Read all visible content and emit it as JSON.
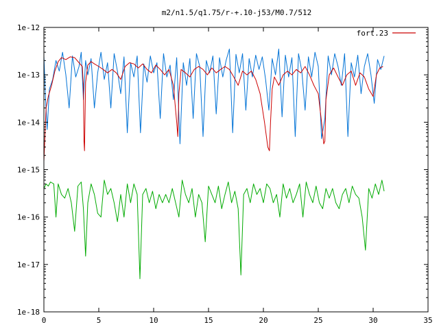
{
  "chart_data": {
    "type": "line",
    "title": "m2/n1.5/q1.75/r-+.10-j53/M0.7/512",
    "xlabel": "",
    "ylabel": "",
    "xlim": [
      0,
      35
    ],
    "ylim": [
      1e-18,
      1e-12
    ],
    "yscale": "log",
    "grid": false,
    "legend_position": "top-right",
    "x_ticks": [
      0,
      5,
      10,
      15,
      20,
      25,
      30,
      35
    ],
    "x_tick_labels": [
      "0",
      "5",
      "10",
      "15",
      "20",
      "25",
      "30",
      "35"
    ],
    "y_ticks": [
      1e-18,
      1e-17,
      1e-16,
      1e-15,
      1e-14,
      1e-13,
      1e-12
    ],
    "y_tick_labels": [
      "1e-18",
      "1e-17",
      "1e-16",
      "1e-15",
      "1e-14",
      "1e-13",
      "1e-12"
    ],
    "series": [
      {
        "name": "fort.23",
        "color": "#cc0000",
        "x": [
          0.0,
          0.2,
          0.4,
          0.7,
          1.0,
          1.3,
          1.6,
          2.0,
          2.4,
          2.8,
          3.2,
          3.5,
          3.6,
          3.65,
          3.7,
          3.8,
          4.0,
          4.3,
          4.6,
          5.0,
          5.4,
          5.8,
          6.2,
          6.6,
          7.0,
          7.4,
          7.8,
          8.2,
          8.6,
          9.0,
          9.4,
          9.8,
          10.2,
          10.6,
          11.0,
          11.4,
          11.8,
          12.1,
          12.2,
          12.3,
          12.5,
          12.9,
          13.3,
          13.7,
          14.1,
          14.5,
          14.9,
          15.3,
          15.7,
          16.1,
          16.5,
          16.9,
          17.3,
          17.7,
          18.1,
          18.5,
          18.9,
          19.3,
          19.7,
          20.1,
          20.4,
          20.55,
          20.65,
          20.8,
          21.0,
          21.4,
          21.8,
          22.2,
          22.6,
          23.0,
          23.4,
          23.8,
          24.2,
          24.6,
          25.0,
          25.3,
          25.5,
          25.6,
          25.7,
          26.0,
          26.4,
          26.8,
          27.2,
          27.6,
          28.0,
          28.4,
          28.8,
          29.2,
          29.6,
          30.0,
          30.3,
          30.6,
          30.9
        ],
        "values": [
          1.5e-15,
          2e-14,
          3.5e-14,
          6e-14,
          1.2e-13,
          1.9e-13,
          2.3e-13,
          2.1e-13,
          2.4e-13,
          2.3e-13,
          1.8e-13,
          1.5e-13,
          6e-14,
          4e-15,
          2.5e-15,
          7e-14,
          1.6e-13,
          1.9e-13,
          1.7e-13,
          1.5e-13,
          1.3e-13,
          1.1e-13,
          1.3e-13,
          1.1e-13,
          8e-14,
          1.5e-13,
          1.8e-13,
          1.7e-13,
          1.4e-13,
          1.7e-13,
          1.3e-13,
          1.1e-13,
          1.6e-13,
          1.3e-13,
          1e-13,
          1.3e-13,
          6e-14,
          1e-14,
          5e-15,
          4e-14,
          1.3e-13,
          1.1e-13,
          9e-14,
          1.3e-13,
          1.5e-13,
          1.3e-13,
          1e-13,
          1.4e-13,
          1.1e-13,
          1.3e-13,
          1.5e-13,
          1.3e-13,
          9e-14,
          6e-14,
          1.2e-13,
          1e-13,
          1.2e-13,
          8e-14,
          4e-14,
          1e-14,
          3e-15,
          2.5e-15,
          1e-14,
          5e-14,
          9e-14,
          6e-14,
          1e-13,
          1.2e-13,
          1e-13,
          1.3e-13,
          1.1e-13,
          1.5e-13,
          1e-13,
          6e-14,
          4e-14,
          1e-14,
          3.5e-15,
          4e-15,
          3e-14,
          1e-13,
          1.4e-13,
          9e-14,
          6e-14,
          1e-13,
          1.2e-13,
          6e-14,
          1.1e-13,
          9e-14,
          5e-14,
          3.5e-14,
          1e-13,
          1.4e-13,
          1.5e-13
        ]
      },
      {
        "name": "",
        "color": "#0072d6",
        "x": [
          0.0,
          0.15,
          0.3,
          0.5,
          0.8,
          1.1,
          1.4,
          1.7,
          2.0,
          2.3,
          2.6,
          2.9,
          3.2,
          3.4,
          3.6,
          3.8,
          4.0,
          4.3,
          4.6,
          4.9,
          5.2,
          5.5,
          5.8,
          6.1,
          6.4,
          6.7,
          7.0,
          7.3,
          7.6,
          7.9,
          8.2,
          8.5,
          8.8,
          9.1,
          9.4,
          9.7,
          10.0,
          10.3,
          10.6,
          10.9,
          11.2,
          11.5,
          11.8,
          12.1,
          12.4,
          12.7,
          13.0,
          13.3,
          13.6,
          13.9,
          14.2,
          14.5,
          14.8,
          15.1,
          15.4,
          15.7,
          16.0,
          16.3,
          16.6,
          16.9,
          17.2,
          17.5,
          17.8,
          18.1,
          18.4,
          18.7,
          19.0,
          19.3,
          19.6,
          19.9,
          20.2,
          20.5,
          20.8,
          21.1,
          21.4,
          21.7,
          22.0,
          22.3,
          22.6,
          22.9,
          23.2,
          23.5,
          23.8,
          24.1,
          24.4,
          24.7,
          25.0,
          25.3,
          25.6,
          25.9,
          26.2,
          26.5,
          26.8,
          27.1,
          27.4,
          27.7,
          28.0,
          28.3,
          28.6,
          28.9,
          29.2,
          29.5,
          29.8,
          30.1,
          30.4,
          30.7,
          31.0
        ],
        "values": [
          2.5e-13,
          3e-14,
          7e-15,
          5e-14,
          8e-14,
          2e-13,
          1.2e-13,
          3e-13,
          1e-13,
          2e-14,
          2.5e-13,
          9e-14,
          1.5e-13,
          3e-13,
          3e-14,
          2e-13,
          1e-13,
          2.2e-13,
          2e-14,
          1.1e-13,
          3e-13,
          8e-14,
          1.8e-13,
          2e-14,
          2.8e-13,
          1.2e-13,
          4e-14,
          2.4e-13,
          6e-15,
          1.8e-13,
          9e-14,
          2.5e-13,
          6e-15,
          1.7e-13,
          7e-14,
          2.5e-13,
          1.1e-13,
          1.8e-13,
          1.2e-14,
          2.8e-13,
          9e-14,
          1.6e-13,
          3e-14,
          2.3e-13,
          3.5e-15,
          1.8e-13,
          6e-14,
          2.2e-13,
          1.2e-14,
          2.8e-13,
          1.5e-13,
          5e-15,
          2e-13,
          1.1e-13,
          2.5e-13,
          1.5e-14,
          2.3e-13,
          9e-14,
          2e-13,
          3.5e-13,
          6e-15,
          2.7e-13,
          1.1e-13,
          2.8e-13,
          1.8e-14,
          2.2e-13,
          9e-14,
          2.6e-13,
          1.3e-13,
          2.4e-13,
          8e-14,
          1.8e-14,
          2.2e-13,
          1e-13,
          3.5e-13,
          1.3e-14,
          2.6e-13,
          9e-14,
          2.3e-13,
          5e-15,
          2.8e-13,
          1.2e-13,
          1.8e-14,
          2.4e-13,
          9e-14,
          3e-13,
          1.5e-13,
          4.5e-15,
          1.2e-14,
          2.5e-13,
          1e-13,
          2.8e-13,
          1.5e-13,
          6e-14,
          2.8e-13,
          5e-15,
          1.8e-13,
          9e-14,
          2.6e-13,
          4e-14,
          1.5e-13,
          2.8e-13,
          1e-13,
          2.5e-14,
          2.1e-13,
          1.3e-13,
          2.5e-13
        ]
      },
      {
        "name": "",
        "color": "#00aa00",
        "x": [
          0.0,
          0.2,
          0.4,
          0.6,
          0.9,
          1.1,
          1.3,
          1.6,
          1.9,
          2.2,
          2.5,
          2.8,
          3.1,
          3.4,
          3.6,
          3.8,
          4.0,
          4.3,
          4.6,
          4.9,
          5.2,
          5.5,
          5.8,
          6.1,
          6.4,
          6.7,
          7.0,
          7.3,
          7.6,
          7.9,
          8.2,
          8.5,
          8.75,
          9.0,
          9.3,
          9.6,
          9.9,
          10.2,
          10.5,
          10.8,
          11.1,
          11.4,
          11.7,
          12.0,
          12.3,
          12.6,
          12.9,
          13.2,
          13.5,
          13.8,
          14.1,
          14.4,
          14.7,
          15.0,
          15.3,
          15.6,
          15.9,
          16.2,
          16.5,
          16.8,
          17.1,
          17.4,
          17.7,
          17.95,
          18.2,
          18.5,
          18.8,
          19.1,
          19.4,
          19.7,
          20.0,
          20.3,
          20.6,
          20.9,
          21.2,
          21.5,
          21.8,
          22.1,
          22.4,
          22.7,
          23.0,
          23.3,
          23.6,
          23.9,
          24.2,
          24.5,
          24.8,
          25.1,
          25.4,
          25.7,
          26.0,
          26.3,
          26.6,
          26.9,
          27.2,
          27.5,
          27.8,
          28.1,
          28.4,
          28.7,
          29.0,
          29.3,
          29.6,
          29.9,
          30.2,
          30.5,
          30.8,
          31.0
        ],
        "values": [
          4e-16,
          5e-16,
          4.5e-16,
          5.5e-16,
          5e-16,
          1e-16,
          5e-16,
          3e-16,
          2.5e-16,
          4e-16,
          2e-16,
          5e-17,
          4.5e-16,
          5.5e-16,
          1.5e-16,
          1.5e-17,
          2e-16,
          5e-16,
          3e-16,
          1.2e-16,
          1e-16,
          6e-16,
          3e-16,
          4e-16,
          2e-16,
          8e-17,
          3e-16,
          1e-16,
          5e-16,
          2e-16,
          5e-16,
          3e-16,
          5e-18,
          3e-16,
          4e-16,
          2e-16,
          3.5e-16,
          1.5e-16,
          3e-16,
          2e-16,
          3e-16,
          2e-16,
          4e-16,
          2e-16,
          1e-16,
          6e-16,
          3e-16,
          2e-16,
          4e-16,
          1e-16,
          3e-16,
          2e-16,
          3e-17,
          4.5e-16,
          3e-16,
          2e-16,
          4.5e-16,
          1.5e-16,
          3e-16,
          5.5e-16,
          2e-16,
          3.5e-16,
          1.5e-16,
          6e-18,
          3e-16,
          4e-16,
          2e-16,
          5e-16,
          3e-16,
          4e-16,
          2e-16,
          5e-16,
          4e-16,
          2e-16,
          3e-16,
          1e-16,
          5e-16,
          2.5e-16,
          4e-16,
          2e-16,
          3e-16,
          5e-16,
          1e-16,
          5.5e-16,
          3e-16,
          2e-16,
          4.5e-16,
          2e-16,
          1.5e-16,
          4e-16,
          2.5e-16,
          4e-16,
          2e-16,
          1.5e-16,
          3e-16,
          4e-16,
          2e-16,
          4.5e-16,
          3e-16,
          2.5e-16,
          1e-16,
          2e-17,
          4e-16,
          2.5e-16,
          5e-16,
          3e-16,
          6e-16,
          3.5e-16
        ]
      }
    ]
  }
}
